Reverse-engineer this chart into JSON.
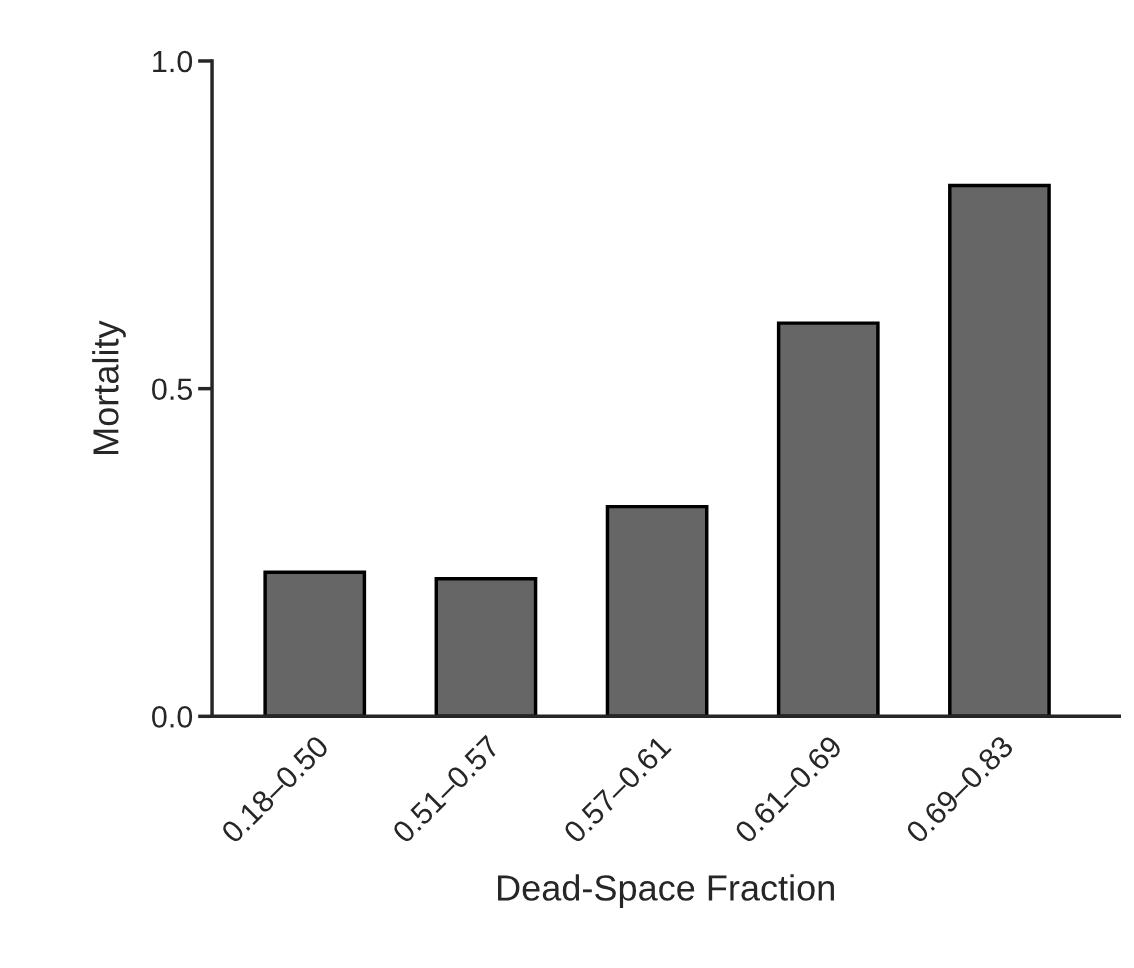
{
  "chart_data": {
    "type": "bar",
    "xlabel": "Dead-Space Fraction",
    "ylabel": "Mortality",
    "categories": [
      "0.18–0.50",
      "0.51–0.57",
      "0.57–0.61",
      "0.61–0.69",
      "0.69–0.83"
    ],
    "values": [
      0.22,
      0.21,
      0.32,
      0.6,
      0.81
    ],
    "color": "#666666",
    "ylim": [
      0,
      1
    ],
    "yticks": [
      {
        "value": 0,
        "label": "0.0"
      },
      {
        "value": 0.5,
        "label": "0.5"
      },
      {
        "value": 1,
        "label": "1.0"
      }
    ],
    "grid": false
  }
}
